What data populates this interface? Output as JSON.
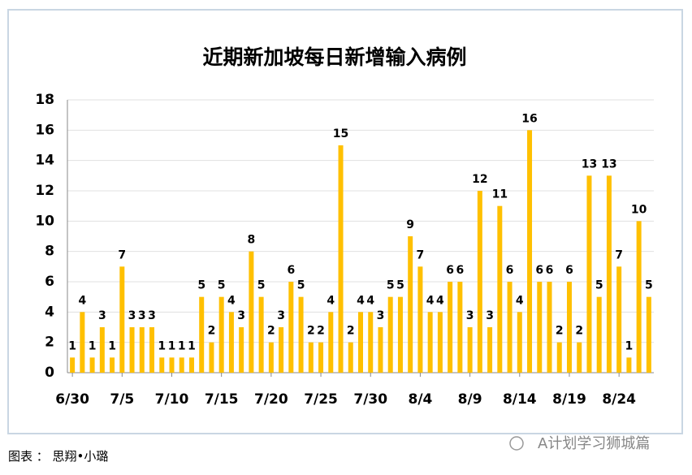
{
  "chart_data": {
    "type": "bar",
    "title": "近期新加坡每日新增输入病例",
    "categories": [
      "6/30",
      null,
      null,
      null,
      null,
      "7/5",
      null,
      null,
      null,
      null,
      "7/10",
      null,
      null,
      null,
      null,
      "7/15",
      null,
      null,
      null,
      null,
      "7/20",
      null,
      null,
      null,
      null,
      "7/25",
      null,
      null,
      null,
      null,
      "7/30",
      null,
      null,
      null,
      null,
      "8/4",
      null,
      null,
      null,
      null,
      "8/9",
      null,
      null,
      null,
      null,
      "8/14",
      null,
      null,
      null,
      null,
      "8/19",
      null,
      null,
      null,
      null,
      "8/24",
      null,
      null,
      null
    ],
    "values": [
      1,
      4,
      1,
      3,
      1,
      7,
      3,
      3,
      3,
      1,
      1,
      1,
      1,
      5,
      2,
      5,
      4,
      3,
      8,
      5,
      2,
      3,
      6,
      5,
      2,
      2,
      4,
      15,
      2,
      4,
      4,
      3,
      5,
      5,
      9,
      7,
      4,
      4,
      6,
      6,
      3,
      12,
      3,
      11,
      6,
      4,
      16,
      6,
      6,
      2,
      6,
      2,
      13,
      5,
      13,
      7,
      1,
      10,
      5
    ],
    "color": "#ffc000",
    "ylim": [
      0,
      18
    ],
    "yticks": [
      0,
      2,
      4,
      6,
      8,
      10,
      12,
      14,
      16,
      18
    ],
    "grid": true
  },
  "source": "图表 ： 思翔•小璐",
  "watermark": "A计划学习狮城篇"
}
